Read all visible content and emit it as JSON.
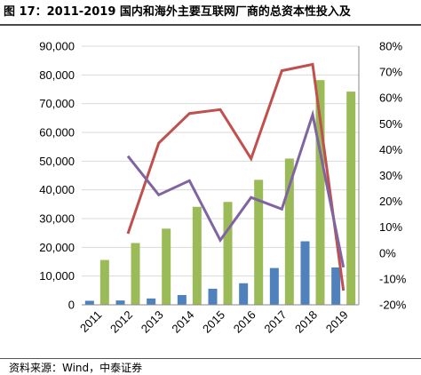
{
  "figure": {
    "title": "图 17：2011-2019 国内和海外主要互联网厂商的总资本性投入及",
    "source": "资料来源：Wind，中泰证券"
  },
  "chart_data": {
    "type": "bar",
    "categories": [
      "2011",
      "2012",
      "2013",
      "2014",
      "2015",
      "2016",
      "2017",
      "2018",
      "2019"
    ],
    "ylim": [
      0,
      90000
    ],
    "y2lim": [
      -0.2,
      0.8
    ],
    "y_ticks": [
      "0",
      "10,000",
      "20,000",
      "30,000",
      "40,000",
      "50,000",
      "60,000",
      "70,000",
      "80,000",
      "90,000"
    ],
    "y2_ticks": [
      "-20%",
      "-10%",
      "0%",
      "10%",
      "20%",
      "30%",
      "40%",
      "50%",
      "60%",
      "70%",
      "80%"
    ],
    "grid": true,
    "series": [
      {
        "type": "bar",
        "axis": "left",
        "color": "#4f81bd",
        "values": [
          1400,
          1500,
          2200,
          3400,
          5600,
          7500,
          12800,
          22100,
          13000
        ]
      },
      {
        "type": "bar",
        "axis": "left",
        "color": "#9bbb59",
        "values": [
          15600,
          21500,
          26500,
          34100,
          35800,
          43500,
          50900,
          78200,
          74200
        ]
      },
      {
        "type": "line",
        "axis": "right",
        "color": "#c0504d",
        "values": [
          null,
          0.075,
          0.425,
          0.54,
          0.555,
          0.365,
          0.705,
          0.73,
          -0.145
        ]
      },
      {
        "type": "line",
        "axis": "right",
        "color": "#8064a2",
        "values": [
          null,
          0.375,
          0.225,
          0.28,
          0.05,
          0.215,
          0.17,
          0.535,
          -0.055
        ]
      }
    ]
  }
}
